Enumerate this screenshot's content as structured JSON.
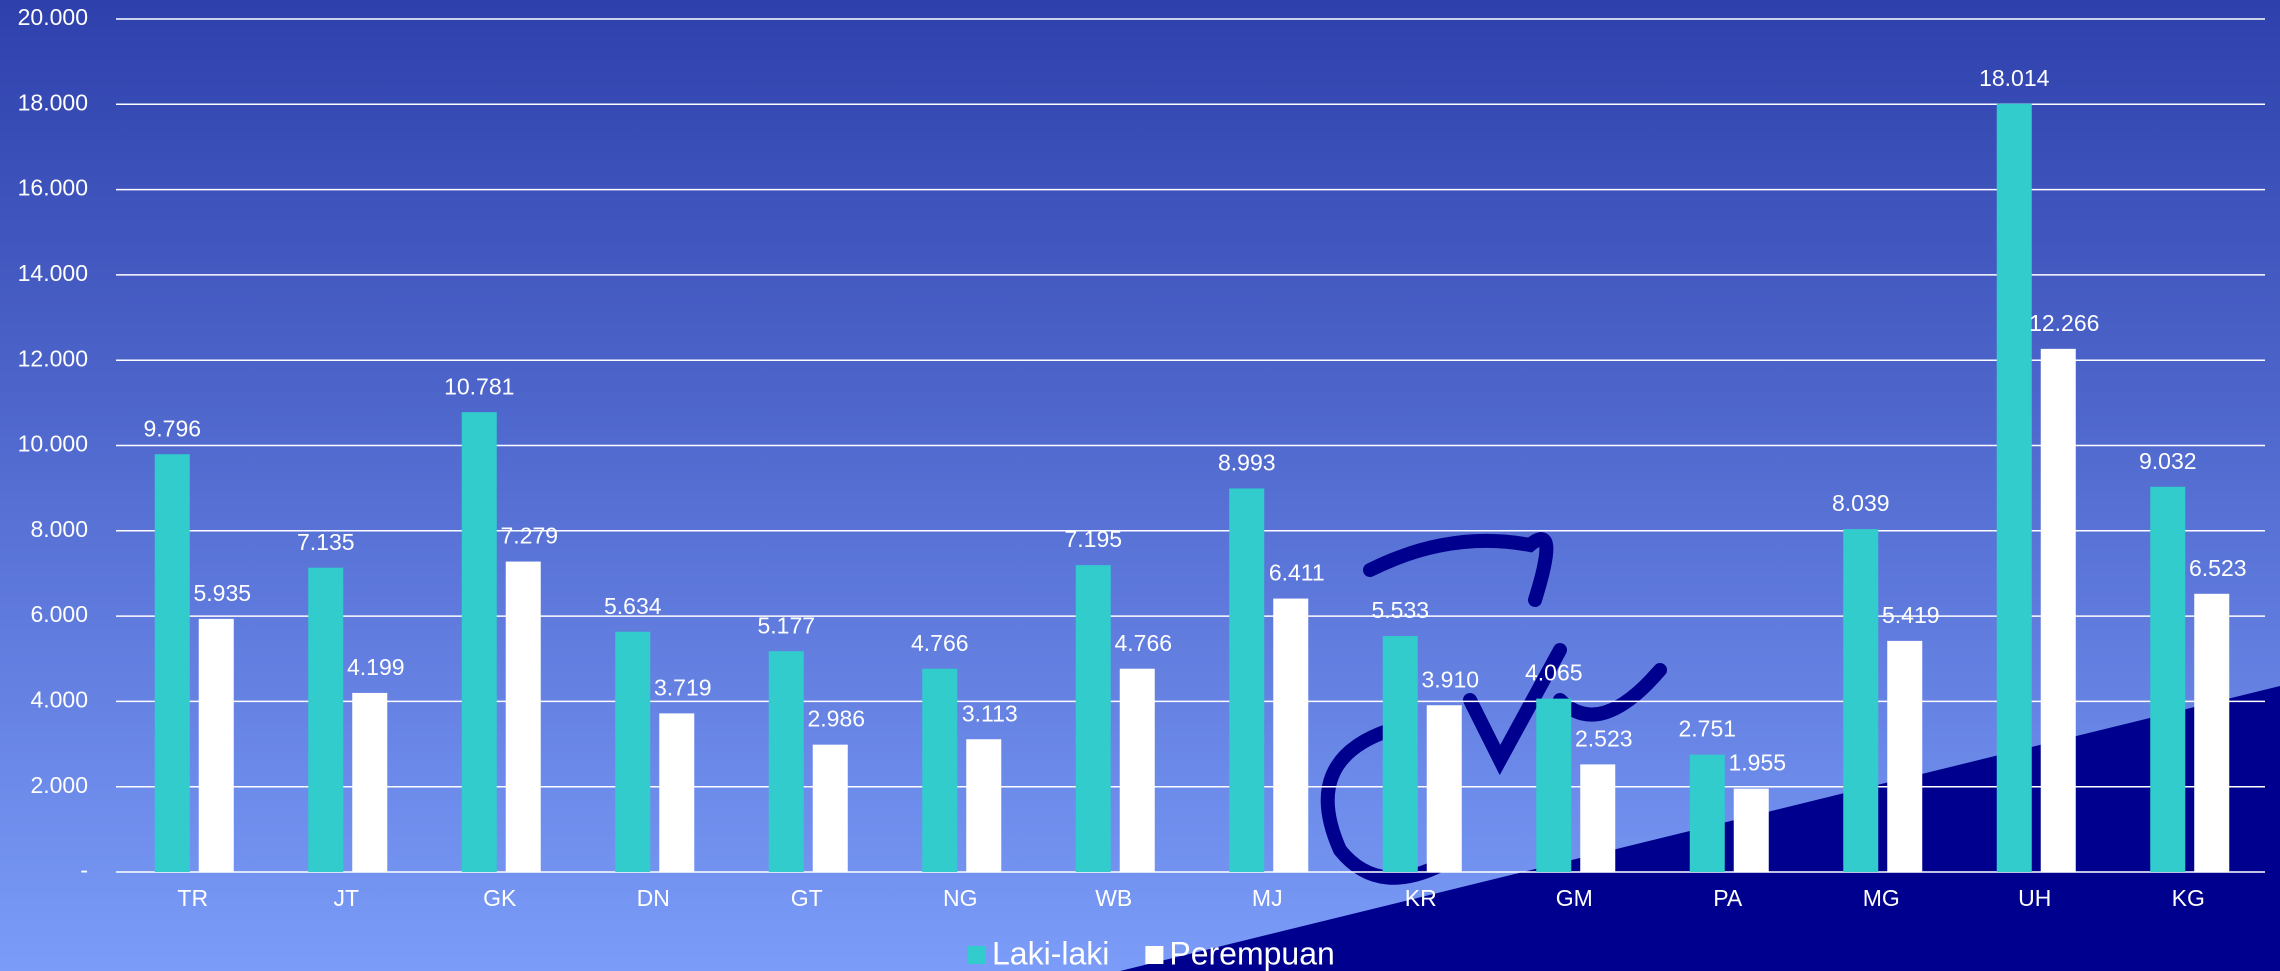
{
  "chart_data": {
    "type": "bar",
    "categories": [
      "TR",
      "JT",
      "GK",
      "DN",
      "GT",
      "NG",
      "WB",
      "MJ",
      "KR",
      "GM",
      "PA",
      "MG",
      "UH",
      "KG"
    ],
    "series": [
      {
        "name": "Laki-laki",
        "color": "#33cccc",
        "values": [
          9796,
          7135,
          10781,
          5634,
          5177,
          4766,
          7195,
          8993,
          5533,
          4065,
          2751,
          8039,
          18014,
          9032
        ],
        "value_labels": [
          "9.796",
          "7.135",
          "10.781",
          "5.634",
          "5.177",
          "4.766",
          "7.195",
          "8.993",
          "5.533",
          "4.065",
          "2.751",
          "8.039",
          "18.014",
          "9.032"
        ]
      },
      {
        "name": "Perempuan",
        "color": "#ffffff",
        "values": [
          5935,
          4199,
          7279,
          3719,
          2986,
          3113,
          4766,
          6411,
          3910,
          2523,
          1955,
          5419,
          12266,
          6523
        ],
        "value_labels": [
          "5.935",
          "4.199",
          "7.279",
          "3.719",
          "2.986",
          "3.113",
          "4.766",
          "6.411",
          "3.910",
          "2.523",
          "1.955",
          "5.419",
          "12.266",
          "6.523"
        ]
      }
    ],
    "ylim": [
      0,
      20000
    ],
    "yticks": [
      {
        "value": 0,
        "label": "-"
      },
      {
        "value": 2000,
        "label": "2.000"
      },
      {
        "value": 4000,
        "label": "4.000"
      },
      {
        "value": 6000,
        "label": "6.000"
      },
      {
        "value": 8000,
        "label": "8.000"
      },
      {
        "value": 10000,
        "label": "10.000"
      },
      {
        "value": 12000,
        "label": "12.000"
      },
      {
        "value": 14000,
        "label": "14.000"
      },
      {
        "value": 16000,
        "label": "16.000"
      },
      {
        "value": 18000,
        "label": "18.000"
      },
      {
        "value": 20000,
        "label": "20.000"
      }
    ],
    "grid": true,
    "legend": "bottom"
  }
}
